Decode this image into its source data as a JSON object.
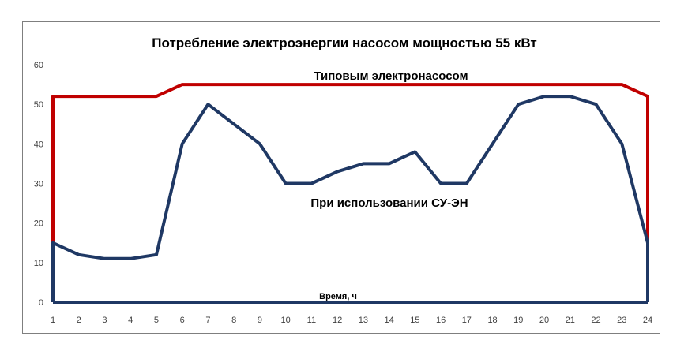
{
  "chart_data": {
    "type": "line",
    "title": "Потребление электроэнергии насосом мощностью 55 кВт",
    "xlabel": "Время, ч",
    "ylabel": "",
    "x": [
      1,
      2,
      3,
      4,
      5,
      6,
      7,
      8,
      9,
      10,
      11,
      12,
      13,
      14,
      15,
      16,
      17,
      18,
      19,
      20,
      21,
      22,
      23,
      24
    ],
    "xlim": [
      1,
      24
    ],
    "ylim": [
      0,
      60
    ],
    "yticks": [
      0,
      10,
      20,
      30,
      40,
      50,
      60
    ],
    "grid": false,
    "legend": "none",
    "series": [
      {
        "name": "Типовым электронасосом",
        "color": "#c00000",
        "values": [
          52,
          52,
          52,
          52,
          52,
          55,
          55,
          55,
          55,
          55,
          55,
          55,
          55,
          55,
          55,
          55,
          55,
          55,
          55,
          55,
          55,
          55,
          55,
          52
        ],
        "closed_to_zero": true
      },
      {
        "name": "При использовании  СУ-ЭН",
        "color": "#1f3864",
        "values": [
          15,
          12,
          11,
          11,
          12,
          40,
          50,
          45,
          40,
          30,
          30,
          33,
          35,
          35,
          38,
          30,
          30,
          40,
          50,
          52,
          52,
          50,
          40,
          15
        ],
        "closed_to_zero": true
      }
    ]
  }
}
